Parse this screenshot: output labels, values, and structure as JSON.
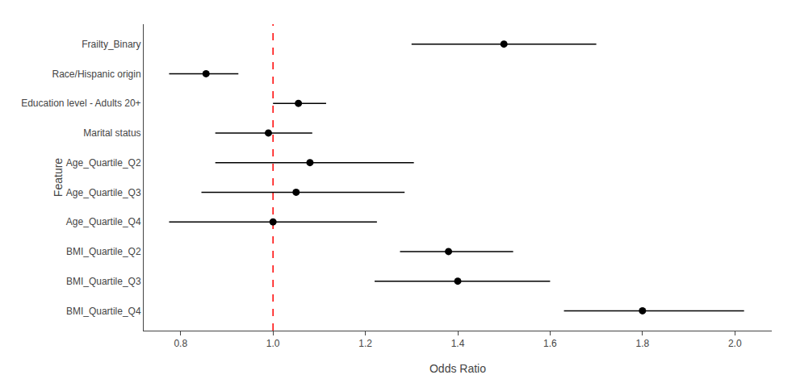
{
  "chart_data": {
    "type": "forest",
    "xlabel": "Odds Ratio",
    "ylabel": "Feature",
    "categories": [
      "Frailty_Binary",
      "Race/Hispanic origin",
      "Education level - Adults 20+",
      "Marital status",
      "Age_Quartile_Q2",
      "Age_Quartile_Q3",
      "Age_Quartile_Q4",
      "BMI_Quartile_Q2",
      "BMI_Quartile_Q3",
      "BMI_Quartile_Q4"
    ],
    "values": [
      1.5,
      0.855,
      1.055,
      0.99,
      1.08,
      1.05,
      1.0,
      1.38,
      1.4,
      1.8
    ],
    "ci_low": [
      1.3,
      0.775,
      1.0,
      0.875,
      0.875,
      0.845,
      0.775,
      1.275,
      1.22,
      1.63
    ],
    "ci_high": [
      1.7,
      0.925,
      1.115,
      1.085,
      1.305,
      1.285,
      1.225,
      1.52,
      1.6,
      2.02
    ],
    "color": "black",
    "marker": "circle",
    "reference_line": {
      "value": 1.0,
      "color": "red",
      "line_style": "dashed"
    },
    "xlim": [
      0.72,
      2.08
    ],
    "xticks": [
      0.8,
      {
        "value": 1.0,
        "label": "1.0"
      },
      1.2,
      1.4,
      1.6,
      1.8,
      {
        "value": 2.0,
        "label": "2.0"
      }
    ],
    "grid": false
  }
}
